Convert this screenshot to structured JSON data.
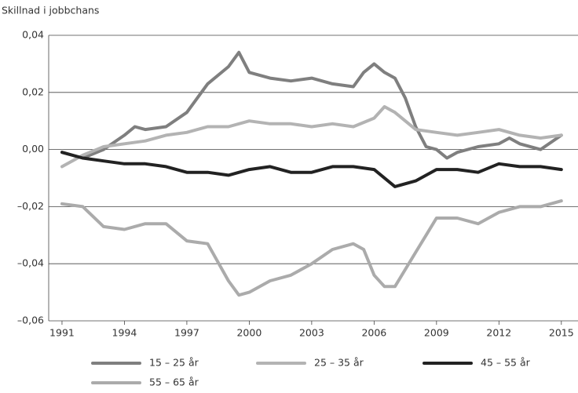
{
  "chart_data": {
    "type": "line",
    "y_label": "Skillnad i jobbchans",
    "xlim": [
      1990.36,
      2015.8
    ],
    "xticks": [
      1991,
      1994,
      1997,
      2000,
      2003,
      2006,
      2009,
      2012,
      2015
    ],
    "ylim": [
      -0.06,
      0.04
    ],
    "yticks": [
      {
        "value": -0.06,
        "label": "–0,06"
      },
      {
        "value": -0.04,
        "label": "–0,04"
      },
      {
        "value": -0.02,
        "label": "–0,02"
      },
      {
        "value": 0,
        "label": "0,00"
      },
      {
        "value": 0.02,
        "label": "0,02"
      },
      {
        "value": 0.04,
        "label": "0,04"
      }
    ],
    "grid": true,
    "series": [
      {
        "name": "15 – 25 år",
        "color": "#7f7f7f",
        "x": [
          1991,
          1992,
          1993,
          1994,
          1994.5,
          1995,
          1996,
          1997,
          1998,
          1999,
          1999.5,
          2000,
          2001,
          2002,
          2003,
          2004,
          2005,
          2005.5,
          2006,
          2006.5,
          2007,
          2007.5,
          2008,
          2008.5,
          2009,
          2009.5,
          2010,
          2011,
          2012,
          2012.5,
          2013,
          2014,
          2015
        ],
        "values": [
          -0.001,
          -0.003,
          0.0,
          0.005,
          0.008,
          0.007,
          0.008,
          0.013,
          0.023,
          0.029,
          0.034,
          0.027,
          0.025,
          0.024,
          0.025,
          0.023,
          0.022,
          0.027,
          0.03,
          0.027,
          0.025,
          0.018,
          0.008,
          0.001,
          0.0,
          -0.003,
          -0.001,
          0.001,
          0.002,
          0.004,
          0.002,
          0.0,
          0.005
        ]
      },
      {
        "name": "25 – 35 år",
        "color": "#b3b3b3",
        "x": [
          1991,
          1992,
          1993,
          1994,
          1995,
          1996,
          1997,
          1998,
          1999,
          2000,
          2001,
          2002,
          2003,
          2004,
          2005,
          2006,
          2006.5,
          2007,
          2008,
          2009,
          2010,
          2011,
          2012,
          2013,
          2014,
          2015
        ],
        "values": [
          -0.006,
          -0.002,
          0.001,
          0.002,
          0.003,
          0.005,
          0.006,
          0.008,
          0.008,
          0.01,
          0.009,
          0.009,
          0.008,
          0.009,
          0.008,
          0.011,
          0.015,
          0.013,
          0.007,
          0.006,
          0.005,
          0.006,
          0.007,
          0.005,
          0.004,
          0.005
        ]
      },
      {
        "name": "45 – 55 år",
        "color": "#222222",
        "x": [
          1991,
          1992,
          1993,
          1994,
          1995,
          1996,
          1997,
          1998,
          1999,
          2000,
          2001,
          2002,
          2003,
          2004,
          2005,
          2006,
          2007,
          2008,
          2009,
          2010,
          2011,
          2012,
          2013,
          2014,
          2015
        ],
        "values": [
          -0.001,
          -0.003,
          -0.004,
          -0.005,
          -0.005,
          -0.006,
          -0.008,
          -0.008,
          -0.009,
          -0.007,
          -0.006,
          -0.008,
          -0.008,
          -0.006,
          -0.006,
          -0.007,
          -0.013,
          -0.011,
          -0.007,
          -0.007,
          -0.008,
          -0.005,
          -0.006,
          -0.006,
          -0.007
        ]
      },
      {
        "name": "55 – 65 år",
        "color": "#ababab",
        "x": [
          1991,
          1992,
          1993,
          1994,
          1995,
          1996,
          1997,
          1998,
          1999,
          1999.5,
          2000,
          2001,
          2002,
          2003,
          2004,
          2005,
          2005.5,
          2006,
          2006.5,
          2007,
          2008,
          2008.5,
          2009,
          2010,
          2011,
          2012,
          2013,
          2014,
          2015
        ],
        "values": [
          -0.019,
          -0.02,
          -0.027,
          -0.028,
          -0.026,
          -0.026,
          -0.032,
          -0.033,
          -0.046,
          -0.051,
          -0.05,
          -0.046,
          -0.044,
          -0.04,
          -0.035,
          -0.033,
          -0.035,
          -0.044,
          -0.048,
          -0.048,
          -0.036,
          -0.03,
          -0.024,
          -0.024,
          -0.026,
          -0.022,
          -0.02,
          -0.02,
          -0.018
        ]
      }
    ]
  }
}
